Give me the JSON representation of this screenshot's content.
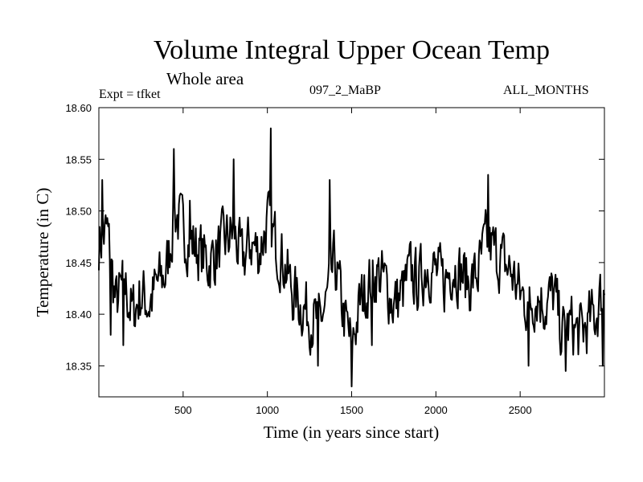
{
  "header": {
    "title": "Volume Integral Upper Ocean Temp",
    "subtitle": "Whole area",
    "expt_label": "Expt = tfket",
    "run_label": "097_2_MaBP",
    "months_label": "ALL_MONTHS"
  },
  "chart_data": {
    "type": "line",
    "title": "Volume Integral Upper Ocean Temp",
    "subtitle": "Whole area",
    "xlabel": "Time (in years since start)",
    "ylabel": "Temperature (in C)",
    "xlim": [
      0,
      3000
    ],
    "ylim": [
      18.32,
      18.6
    ],
    "x_ticks": [
      500,
      1000,
      1500,
      2000,
      2500
    ],
    "x_tick_labels": [
      "500",
      "1000",
      "1500",
      "2000",
      "2500"
    ],
    "y_ticks": [
      18.35,
      18.4,
      18.45,
      18.5,
      18.55,
      18.6
    ],
    "y_tick_labels": [
      "18.35",
      "18.40",
      "18.45",
      "18.50",
      "18.55",
      "18.60"
    ],
    "grid": false,
    "line_color": "#000000",
    "series": [
      {
        "x": [
          0,
          50,
          100,
          150,
          200,
          250,
          300,
          350,
          400,
          450,
          500,
          550,
          600,
          650,
          700,
          750,
          800,
          850,
          900,
          950,
          1000,
          1050,
          1100,
          1150,
          1200,
          1250,
          1300,
          1350,
          1400,
          1450,
          1500,
          1550,
          1600,
          1650,
          1700,
          1750,
          1800,
          1850,
          1900,
          1950,
          2000,
          2050,
          2100,
          2150,
          2200,
          2250,
          2300,
          2350,
          2400,
          2450,
          2500,
          2550,
          2600,
          2650,
          2700,
          2750,
          2800,
          2850,
          2900,
          2950,
          3000
        ],
        "values": [
          18.47,
          18.48,
          18.41,
          18.43,
          18.4,
          18.42,
          18.41,
          18.43,
          18.44,
          18.5,
          18.48,
          18.47,
          18.46,
          18.45,
          18.46,
          18.47,
          18.48,
          18.45,
          18.47,
          18.46,
          18.49,
          18.47,
          18.45,
          18.42,
          18.41,
          18.4,
          18.39,
          18.41,
          18.45,
          18.4,
          18.37,
          18.41,
          18.43,
          18.44,
          18.43,
          18.41,
          18.42,
          18.44,
          18.43,
          18.45,
          18.44,
          18.43,
          18.45,
          18.44,
          18.43,
          18.44,
          18.47,
          18.46,
          18.45,
          18.44,
          18.42,
          18.41,
          18.42,
          18.41,
          18.42,
          18.38,
          18.39,
          18.38,
          18.39,
          18.4,
          18.43
        ],
        "peaks": [
          [
            20,
            18.53
          ],
          [
            70,
            18.38
          ],
          [
            145,
            18.37
          ],
          [
            445,
            18.56
          ],
          [
            540,
            18.51
          ],
          [
            800,
            18.55
          ],
          [
            1020,
            18.58
          ],
          [
            1300,
            18.35
          ],
          [
            1370,
            18.53
          ],
          [
            1500,
            18.33
          ],
          [
            1620,
            18.37
          ],
          [
            2310,
            18.535
          ],
          [
            2550,
            18.35
          ],
          [
            2770,
            18.345
          ],
          [
            2990,
            18.35
          ]
        ]
      }
    ]
  }
}
